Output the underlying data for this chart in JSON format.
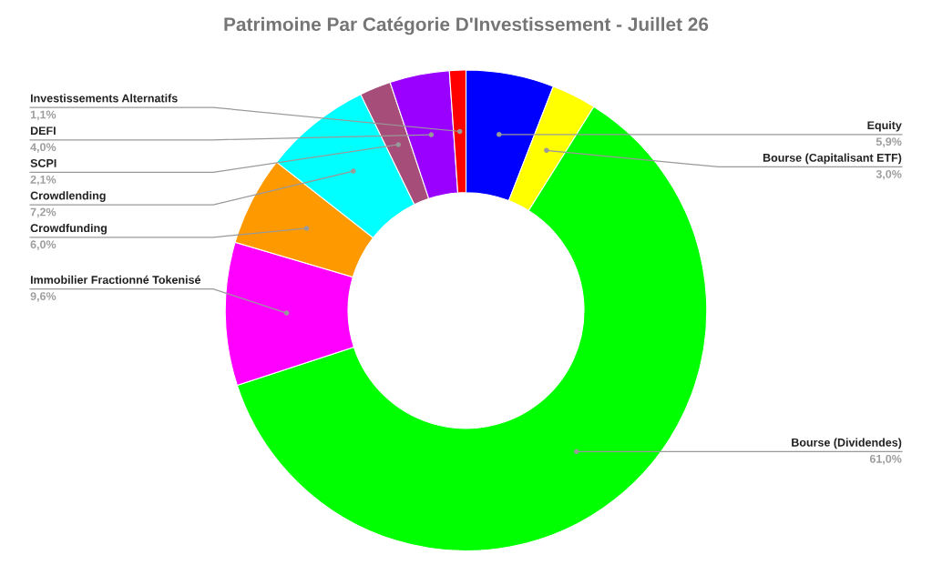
{
  "chart_data": {
    "type": "donut",
    "title": "Patrimoine Par Catégorie D'Investissement - Juillet 26",
    "categories": [
      "Equity",
      "Bourse (Capitalisant ETF)",
      "Bourse (Dividendes)",
      "Immobilier Fractionné Tokenisé",
      "Crowdfunding",
      "Crowdlending",
      "SCPI",
      "DEFI",
      "Investissements Alternatifs"
    ],
    "values": [
      5.9,
      3.0,
      61.0,
      9.6,
      6.0,
      7.2,
      2.1,
      4.0,
      1.1
    ],
    "colors": [
      "#0000ff",
      "#ffff00",
      "#00ff00",
      "#ff00ff",
      "#ff9900",
      "#00ffff",
      "#a64d79",
      "#9900ff",
      "#ff0000"
    ],
    "value_labels": [
      "5,9%",
      "3,0%",
      "61,0%",
      "9,6%",
      "6,0%",
      "7,2%",
      "2,1%",
      "4,0%",
      "1,1%"
    ],
    "legend": false
  }
}
